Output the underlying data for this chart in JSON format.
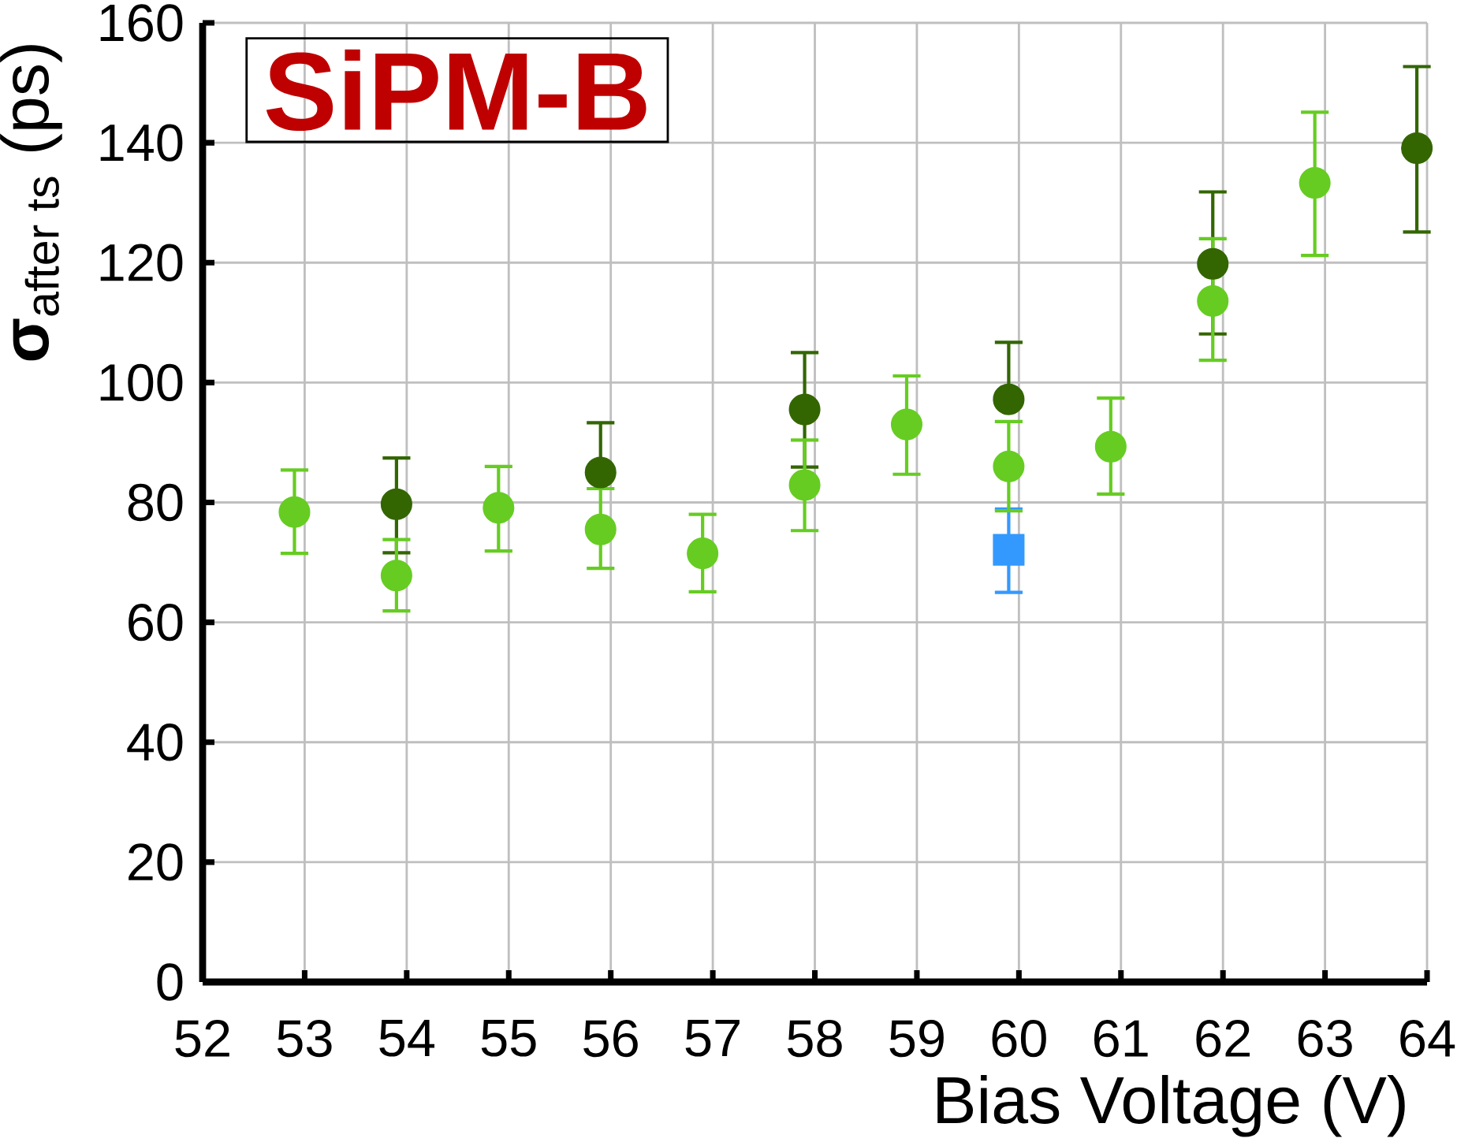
{
  "chart_data": {
    "type": "scatter",
    "xlabel": "Bias Voltage (V)",
    "ylabel": "\\textbf{σ}_{\\text{after ts}}\\ \\text{(ps)}",
    "annotations": [
      "SiPM-B"
    ],
    "xlim": [
      52,
      64
    ],
    "ylim": [
      0,
      160
    ],
    "xticks": [
      52,
      53,
      54,
      55,
      56,
      57,
      58,
      59,
      60,
      61,
      62,
      63,
      64
    ],
    "yticks": [
      0,
      20,
      40,
      60,
      80,
      100,
      120,
      140,
      160
    ],
    "grid": true,
    "series": [
      {
        "color": "#66cc22",
        "marker": "circle",
        "x": [
          52.9,
          53.9,
          54.9,
          55.9,
          56.9,
          57.9,
          58.9,
          59.9,
          60.9,
          61.9,
          62.9
        ],
        "values": [
          78.4,
          67.8,
          79.1,
          75.5,
          71.5,
          82.9,
          93.0,
          86.0,
          89.3,
          113.6,
          133.3
        ],
        "errors": [
          [
            71.5,
            85.4
          ],
          [
            61.9,
            73.8
          ],
          [
            71.9,
            86.0
          ],
          [
            69.0,
            82.3
          ],
          [
            65.1,
            78.0
          ],
          [
            75.3,
            90.4
          ],
          [
            84.7,
            101.1
          ],
          [
            78.6,
            93.5
          ],
          [
            81.4,
            97.4
          ],
          [
            103.7,
            124.0
          ],
          [
            121.2,
            145.1
          ]
        ]
      },
      {
        "color": "#336600",
        "marker": "circle",
        "x": [
          53.9,
          55.9,
          57.9,
          59.9,
          61.9,
          63.9
        ],
        "values": [
          79.7,
          85.0,
          95.5,
          97.2,
          119.8,
          139.1
        ],
        "errors": [
          [
            71.6,
            87.4
          ],
          [
            85.0,
            93.3
          ],
          [
            85.9,
            105.0
          ],
          [
            97.2,
            106.7
          ],
          [
            108.1,
            131.8
          ],
          [
            125.1,
            152.7
          ]
        ]
      },
      {
        "color": "#3399ff",
        "marker": "square",
        "x": [
          59.9
        ],
        "values": [
          72.1
        ],
        "errors": [
          [
            65.0,
            78.9
          ]
        ]
      }
    ]
  }
}
